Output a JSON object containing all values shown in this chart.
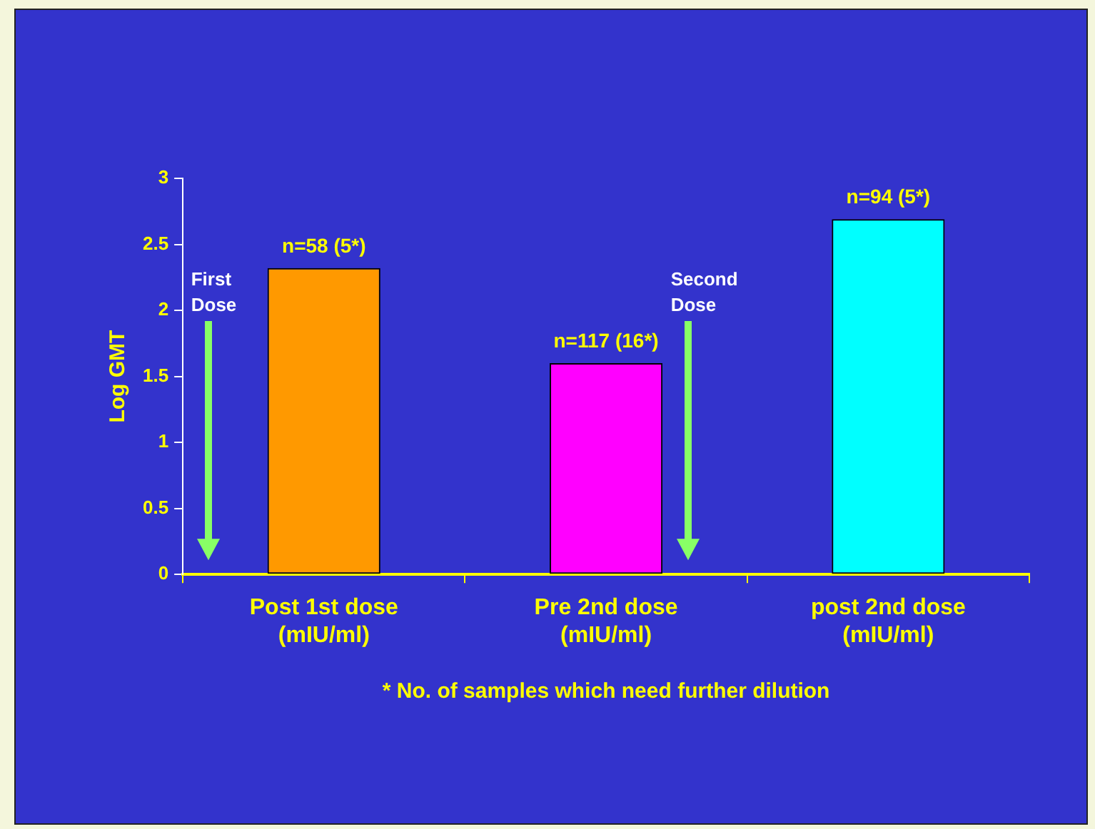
{
  "chart_data": {
    "type": "bar",
    "ylabel": "Log GMT",
    "categories": [
      "Post 1st dose\n(mIU/ml)",
      "Pre 2nd dose\n(mIU/ml)",
      "post 2nd dose\n(mIU/ml)"
    ],
    "values": [
      2.32,
      1.6,
      2.69
    ],
    "colors": [
      "#ff9900",
      "#ff00ff",
      "#00ffff"
    ],
    "value_labels": [
      "n=58 (5*)",
      "n=117 (16*)",
      "n=94 (5*)"
    ],
    "ylim": [
      0,
      3
    ],
    "yticks": [
      0,
      0.5,
      1,
      1.5,
      2,
      2.5,
      3
    ],
    "grid": false,
    "legend": false,
    "annotations": [
      "First\nDose",
      "Second\nDose",
      "* No. of samples which need further dilution"
    ]
  }
}
